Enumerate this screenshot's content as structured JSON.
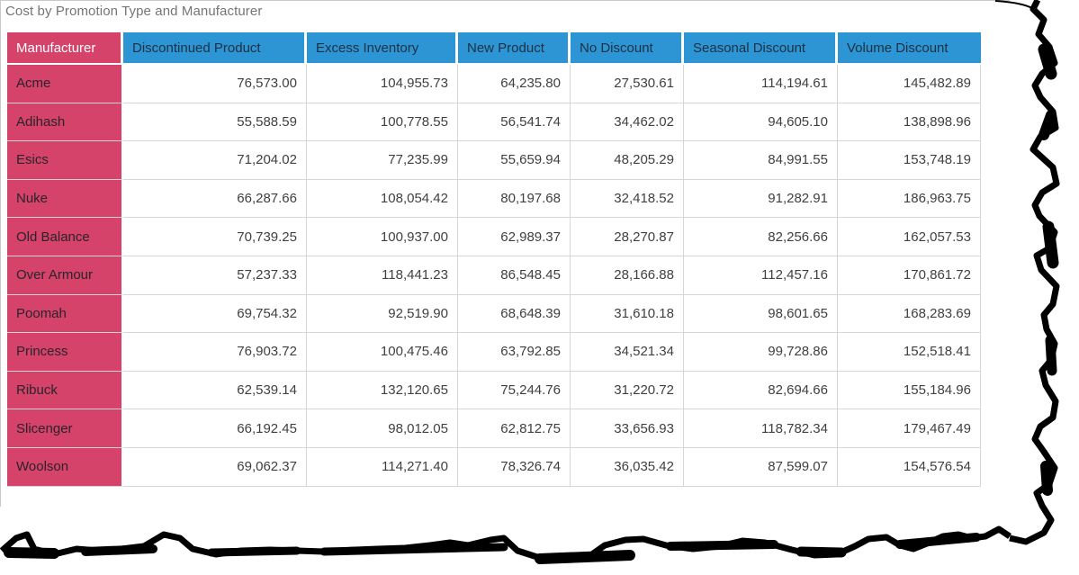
{
  "title": "Cost by Promotion Type and Manufacturer",
  "colors": {
    "row_header_crimson": "#d5436b",
    "column_header_blue": "#2d95d3",
    "column_header_text": "#1c3144",
    "row_header_header_text": "#ffffff",
    "value_text": "#404040",
    "grid_line": "#d6d6d6",
    "title_text": "#757575",
    "tear_edge": "#000000"
  },
  "table": {
    "columns": [
      "Manufacturer",
      "Discontinued Product",
      "Excess Inventory",
      "New Product",
      "No Discount",
      "Seasonal Discount",
      "Volume Discount"
    ],
    "rows": [
      {
        "manufacturer": "Acme",
        "values": [
          "76,573.00",
          "104,955.73",
          "64,235.80",
          "27,530.61",
          "114,194.61",
          "145,482.89"
        ]
      },
      {
        "manufacturer": "Adihash",
        "values": [
          "55,588.59",
          "100,778.55",
          "56,541.74",
          "34,462.02",
          "94,605.10",
          "138,898.96"
        ]
      },
      {
        "manufacturer": "Esics",
        "values": [
          "71,204.02",
          "77,235.99",
          "55,659.94",
          "48,205.29",
          "84,991.55",
          "153,748.19"
        ]
      },
      {
        "manufacturer": "Nuke",
        "values": [
          "66,287.66",
          "108,054.42",
          "80,197.68",
          "32,418.52",
          "91,282.91",
          "186,963.75"
        ]
      },
      {
        "manufacturer": "Old Balance",
        "values": [
          "70,739.25",
          "100,937.00",
          "62,989.37",
          "28,270.87",
          "82,256.66",
          "162,057.53"
        ]
      },
      {
        "manufacturer": "Over Armour",
        "values": [
          "57,237.33",
          "118,441.23",
          "86,548.45",
          "28,166.88",
          "112,457.16",
          "170,861.72"
        ]
      },
      {
        "manufacturer": "Poomah",
        "values": [
          "69,754.32",
          "92,519.90",
          "68,648.39",
          "31,610.18",
          "98,601.65",
          "168,283.69"
        ]
      },
      {
        "manufacturer": "Princess",
        "values": [
          "76,903.72",
          "100,475.46",
          "63,792.85",
          "34,521.34",
          "99,728.86",
          "152,518.41"
        ]
      },
      {
        "manufacturer": "Ribuck",
        "values": [
          "62,539.14",
          "132,120.65",
          "75,244.76",
          "31,220.72",
          "82,694.66",
          "155,184.96"
        ]
      },
      {
        "manufacturer": "Slicenger",
        "values": [
          "66,192.45",
          "98,012.05",
          "62,812.75",
          "33,656.93",
          "118,782.34",
          "179,467.49"
        ]
      },
      {
        "manufacturer": "Woolson",
        "values": [
          "69,062.37",
          "114,271.40",
          "78,326.74",
          "36,035.42",
          "87,599.07",
          "154,576.54"
        ]
      }
    ]
  },
  "chart_data": {
    "type": "table",
    "title": "Cost by Promotion Type and Manufacturer",
    "row_header": "Manufacturer",
    "columns": [
      "Discontinued Product",
      "Excess Inventory",
      "New Product",
      "No Discount",
      "Seasonal Discount",
      "Volume Discount"
    ],
    "rows": [
      {
        "name": "Acme",
        "values": [
          76573.0,
          104955.73,
          64235.8,
          27530.61,
          114194.61,
          145482.89
        ]
      },
      {
        "name": "Adihash",
        "values": [
          55588.59,
          100778.55,
          56541.74,
          34462.02,
          94605.1,
          138898.96
        ]
      },
      {
        "name": "Esics",
        "values": [
          71204.02,
          77235.99,
          55659.94,
          48205.29,
          84991.55,
          153748.19
        ]
      },
      {
        "name": "Nuke",
        "values": [
          66287.66,
          108054.42,
          80197.68,
          32418.52,
          91282.91,
          186963.75
        ]
      },
      {
        "name": "Old Balance",
        "values": [
          70739.25,
          100937.0,
          62989.37,
          28270.87,
          82256.66,
          162057.53
        ]
      },
      {
        "name": "Over Armour",
        "values": [
          57237.33,
          118441.23,
          86548.45,
          28166.88,
          112457.16,
          170861.72
        ]
      },
      {
        "name": "Poomah",
        "values": [
          69754.32,
          92519.9,
          68648.39,
          31610.18,
          98601.65,
          168283.69
        ]
      },
      {
        "name": "Princess",
        "values": [
          76903.72,
          100475.46,
          63792.85,
          34521.34,
          99728.86,
          152518.41
        ]
      },
      {
        "name": "Ribuck",
        "values": [
          62539.14,
          132120.65,
          75244.76,
          31220.72,
          82694.66,
          155184.96
        ]
      },
      {
        "name": "Slicenger",
        "values": [
          66192.45,
          98012.05,
          62812.75,
          33656.93,
          118782.34,
          179467.49
        ]
      },
      {
        "name": "Woolson",
        "values": [
          69062.37,
          114271.4,
          78326.74,
          36035.42,
          87599.07,
          154576.54
        ]
      }
    ],
    "layout": {
      "grid": true,
      "value_alignment": "right",
      "number_format": "#,##0.00"
    }
  }
}
